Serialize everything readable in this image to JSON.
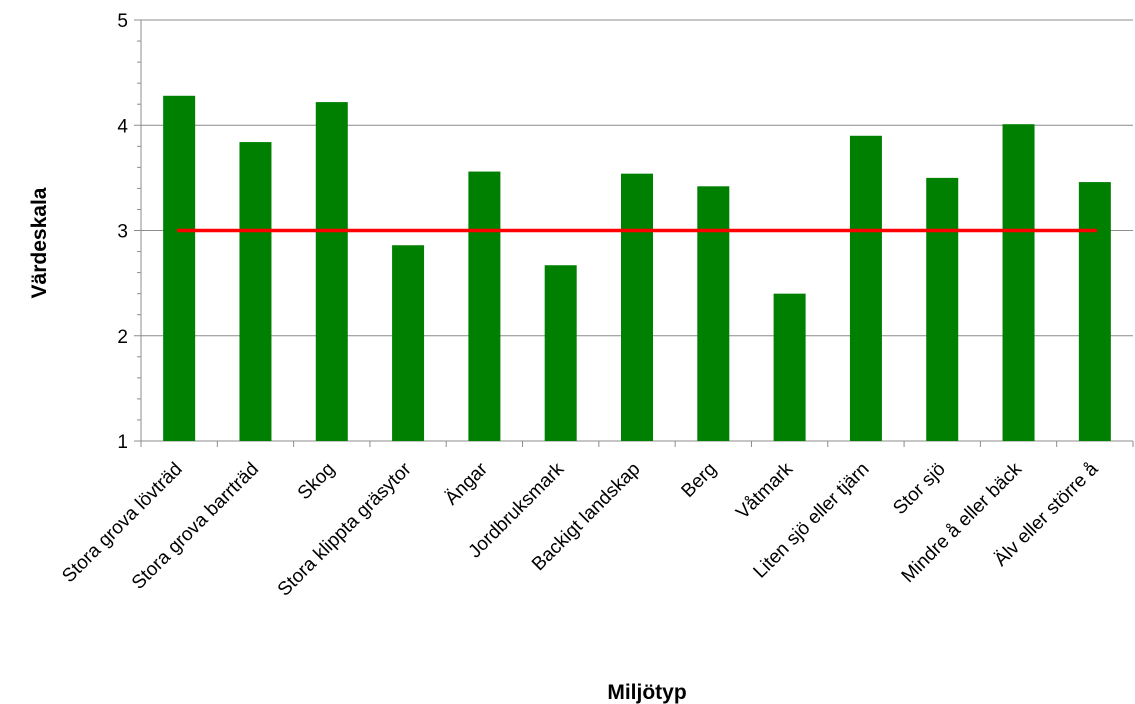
{
  "chart_data": {
    "type": "bar",
    "title": "",
    "xlabel": "Miljötyp",
    "ylabel": "Värdeskala",
    "ylim": [
      1,
      5
    ],
    "yticks": [
      1,
      2,
      3,
      4,
      5
    ],
    "grid": true,
    "bar_color": "#008000",
    "reference_line": {
      "value": 3,
      "color": "#ff0000"
    },
    "categories": [
      "Stora grova lövträd",
      "Stora grova barrträd",
      "Skog",
      "Stora klippta gräsytor",
      "Ängar",
      "Jordbruksmark",
      "Backigt landskap",
      "Berg",
      "Våtmark",
      "Liten sjö eller tjärn",
      "Stor sjö",
      "Mindre å eller bäck",
      "Älv eller större å"
    ],
    "values": [
      4.28,
      3.84,
      4.22,
      2.86,
      3.56,
      2.67,
      3.54,
      3.42,
      2.4,
      3.9,
      3.5,
      4.01,
      3.46
    ]
  }
}
